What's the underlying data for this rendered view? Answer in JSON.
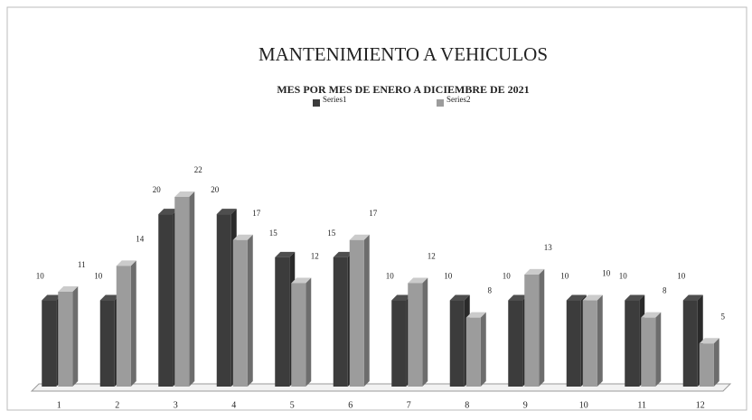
{
  "chart_data": {
    "type": "bar3d",
    "title": "MANTENIMIENTO A VEHICULOS",
    "subtitle": "MES POR MES DE ENERO A DICIEMBRE DE 2021",
    "categories": [
      "1",
      "2",
      "3",
      "4",
      "5",
      "6",
      "7",
      "8",
      "9",
      "10",
      "11",
      "12"
    ],
    "series": [
      {
        "name": "Series1",
        "color": "#3c3c3c",
        "values": [
          10,
          10,
          20,
          20,
          15,
          15,
          10,
          10,
          10,
          10,
          10,
          10
        ]
      },
      {
        "name": "Series2",
        "color": "#9c9c9c",
        "values": [
          11,
          14,
          22,
          17,
          12,
          17,
          12,
          8,
          13,
          10,
          8,
          5
        ]
      }
    ],
    "legend": "top"
  }
}
